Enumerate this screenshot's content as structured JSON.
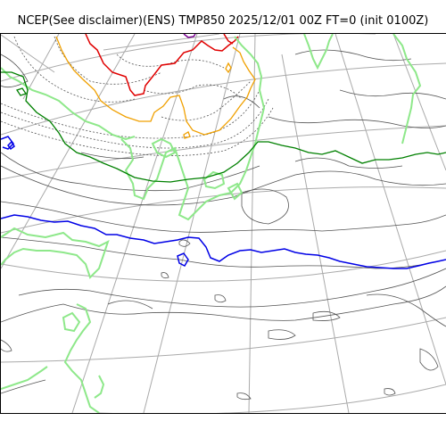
{
  "title": "NCEP(See disclaimer)(ENS) TMP850 2025/12/01 00Z FT=0 (init 0100Z)",
  "colors": {
    "background": "#ffffff",
    "frame": "#000000",
    "graticule": "#aaaaaa",
    "coastline": "#555555",
    "contour_dashed": "#555555",
    "contour_purple": "#7a0091",
    "contour_red": "#e00000",
    "contour_orange": "#f0a000",
    "contour_lightgreen": "#8ee88a",
    "contour_green": "#008000",
    "contour_blue": "#0000e6"
  }
}
